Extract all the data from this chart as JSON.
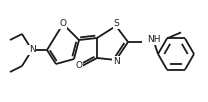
{
  "bg_color": "#ffffff",
  "line_color": "#1a1a1a",
  "bond_lw": 1.3,
  "figsize": [
    2.08,
    1.02
  ],
  "dpi": 100,
  "font_size_atom": 6.5,
  "xlim": [
    0,
    208
  ],
  "ylim": [
    0,
    102
  ]
}
